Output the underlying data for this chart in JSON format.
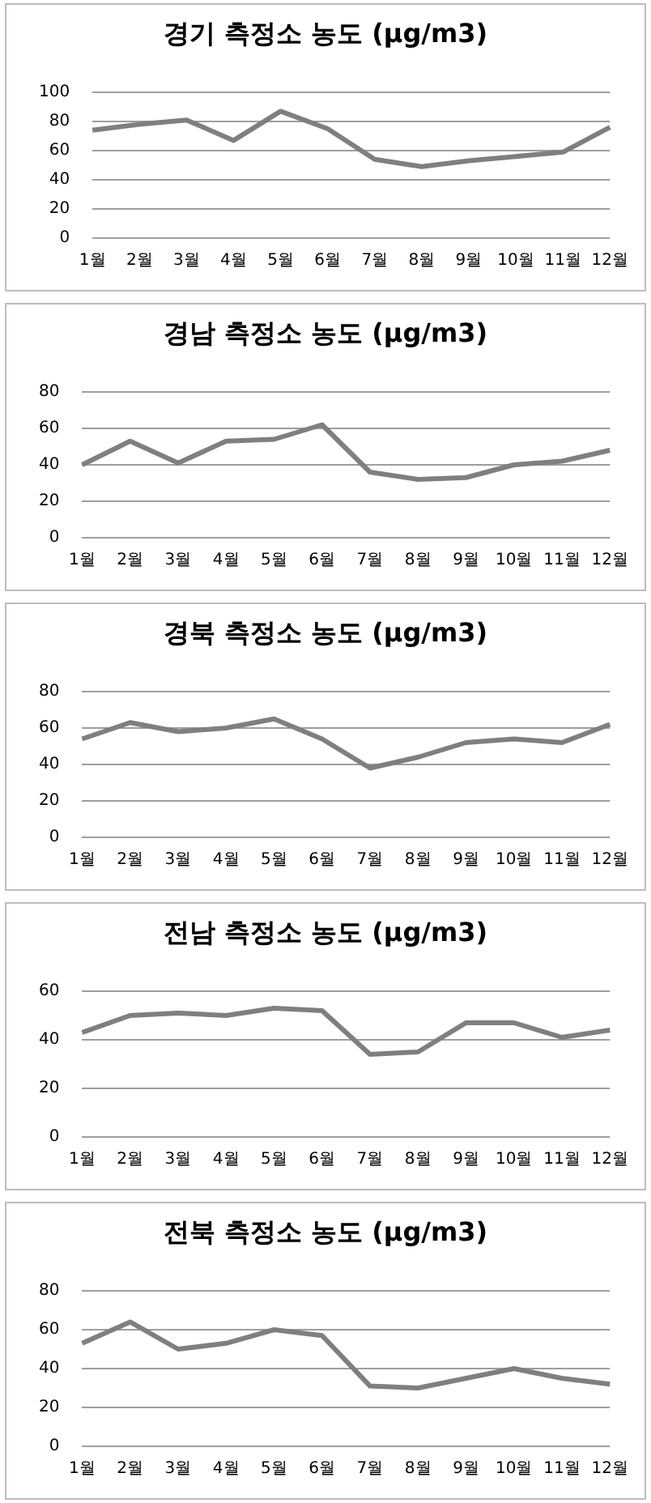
{
  "chart_data": [
    {
      "type": "line",
      "title": "경기 측정소 농도 (µg/m3)",
      "categories": [
        "1월",
        "2월",
        "3월",
        "4월",
        "5월",
        "6월",
        "7월",
        "8월",
        "9월",
        "10월",
        "11월",
        "12월"
      ],
      "values": [
        74,
        78,
        81,
        67,
        87,
        75,
        54,
        49,
        53,
        56,
        59,
        76
      ],
      "color": "#7f7f7f",
      "ylim": [
        0,
        100
      ],
      "yticks": [
        0,
        20,
        40,
        60,
        80,
        100
      ],
      "grid": "y",
      "marker": "none"
    },
    {
      "type": "line",
      "title": "경남 측정소 농도 (µg/m3)",
      "categories": [
        "1월",
        "2월",
        "3월",
        "4월",
        "5월",
        "6월",
        "7월",
        "8월",
        "9월",
        "10월",
        "11월",
        "12월"
      ],
      "values": [
        40,
        53,
        41,
        53,
        54,
        62,
        36,
        32,
        33,
        40,
        42,
        48
      ],
      "color": "#7f7f7f",
      "ylim": [
        0,
        80
      ],
      "yticks": [
        0,
        20,
        40,
        60,
        80
      ],
      "grid": "y",
      "marker": "none"
    },
    {
      "type": "line",
      "title": "경북 측정소 농도 (µg/m3)",
      "categories": [
        "1월",
        "2월",
        "3월",
        "4월",
        "5월",
        "6월",
        "7월",
        "8월",
        "9월",
        "10월",
        "11월",
        "12월"
      ],
      "values": [
        54,
        63,
        58,
        60,
        65,
        54,
        38,
        44,
        52,
        54,
        52,
        62
      ],
      "color": "#7f7f7f",
      "ylim": [
        0,
        80
      ],
      "yticks": [
        0,
        20,
        40,
        60,
        80
      ],
      "grid": "y",
      "marker": "none"
    },
    {
      "type": "line",
      "title": "전남 측정소 농도 (µg/m3)",
      "categories": [
        "1월",
        "2월",
        "3월",
        "4월",
        "5월",
        "6월",
        "7월",
        "8월",
        "9월",
        "10월",
        "11월",
        "12월"
      ],
      "values": [
        43,
        50,
        51,
        50,
        53,
        52,
        34,
        35,
        47,
        47,
        41,
        44
      ],
      "color": "#7f7f7f",
      "ylim": [
        0,
        60
      ],
      "yticks": [
        0,
        20,
        40,
        60
      ],
      "grid": "y",
      "marker": "none"
    },
    {
      "type": "line",
      "title": "전북 측정소 농도 (µg/m3)",
      "categories": [
        "1월",
        "2월",
        "3월",
        "4월",
        "5월",
        "6월",
        "7월",
        "8월",
        "9월",
        "10월",
        "11월",
        "12월"
      ],
      "values": [
        53,
        64,
        50,
        53,
        60,
        57,
        31,
        30,
        35,
        40,
        35,
        32
      ],
      "color": "#7f7f7f",
      "ylim": [
        0,
        80
      ],
      "yticks": [
        0,
        20,
        40,
        60,
        80
      ],
      "grid": "y",
      "marker": "none"
    }
  ]
}
